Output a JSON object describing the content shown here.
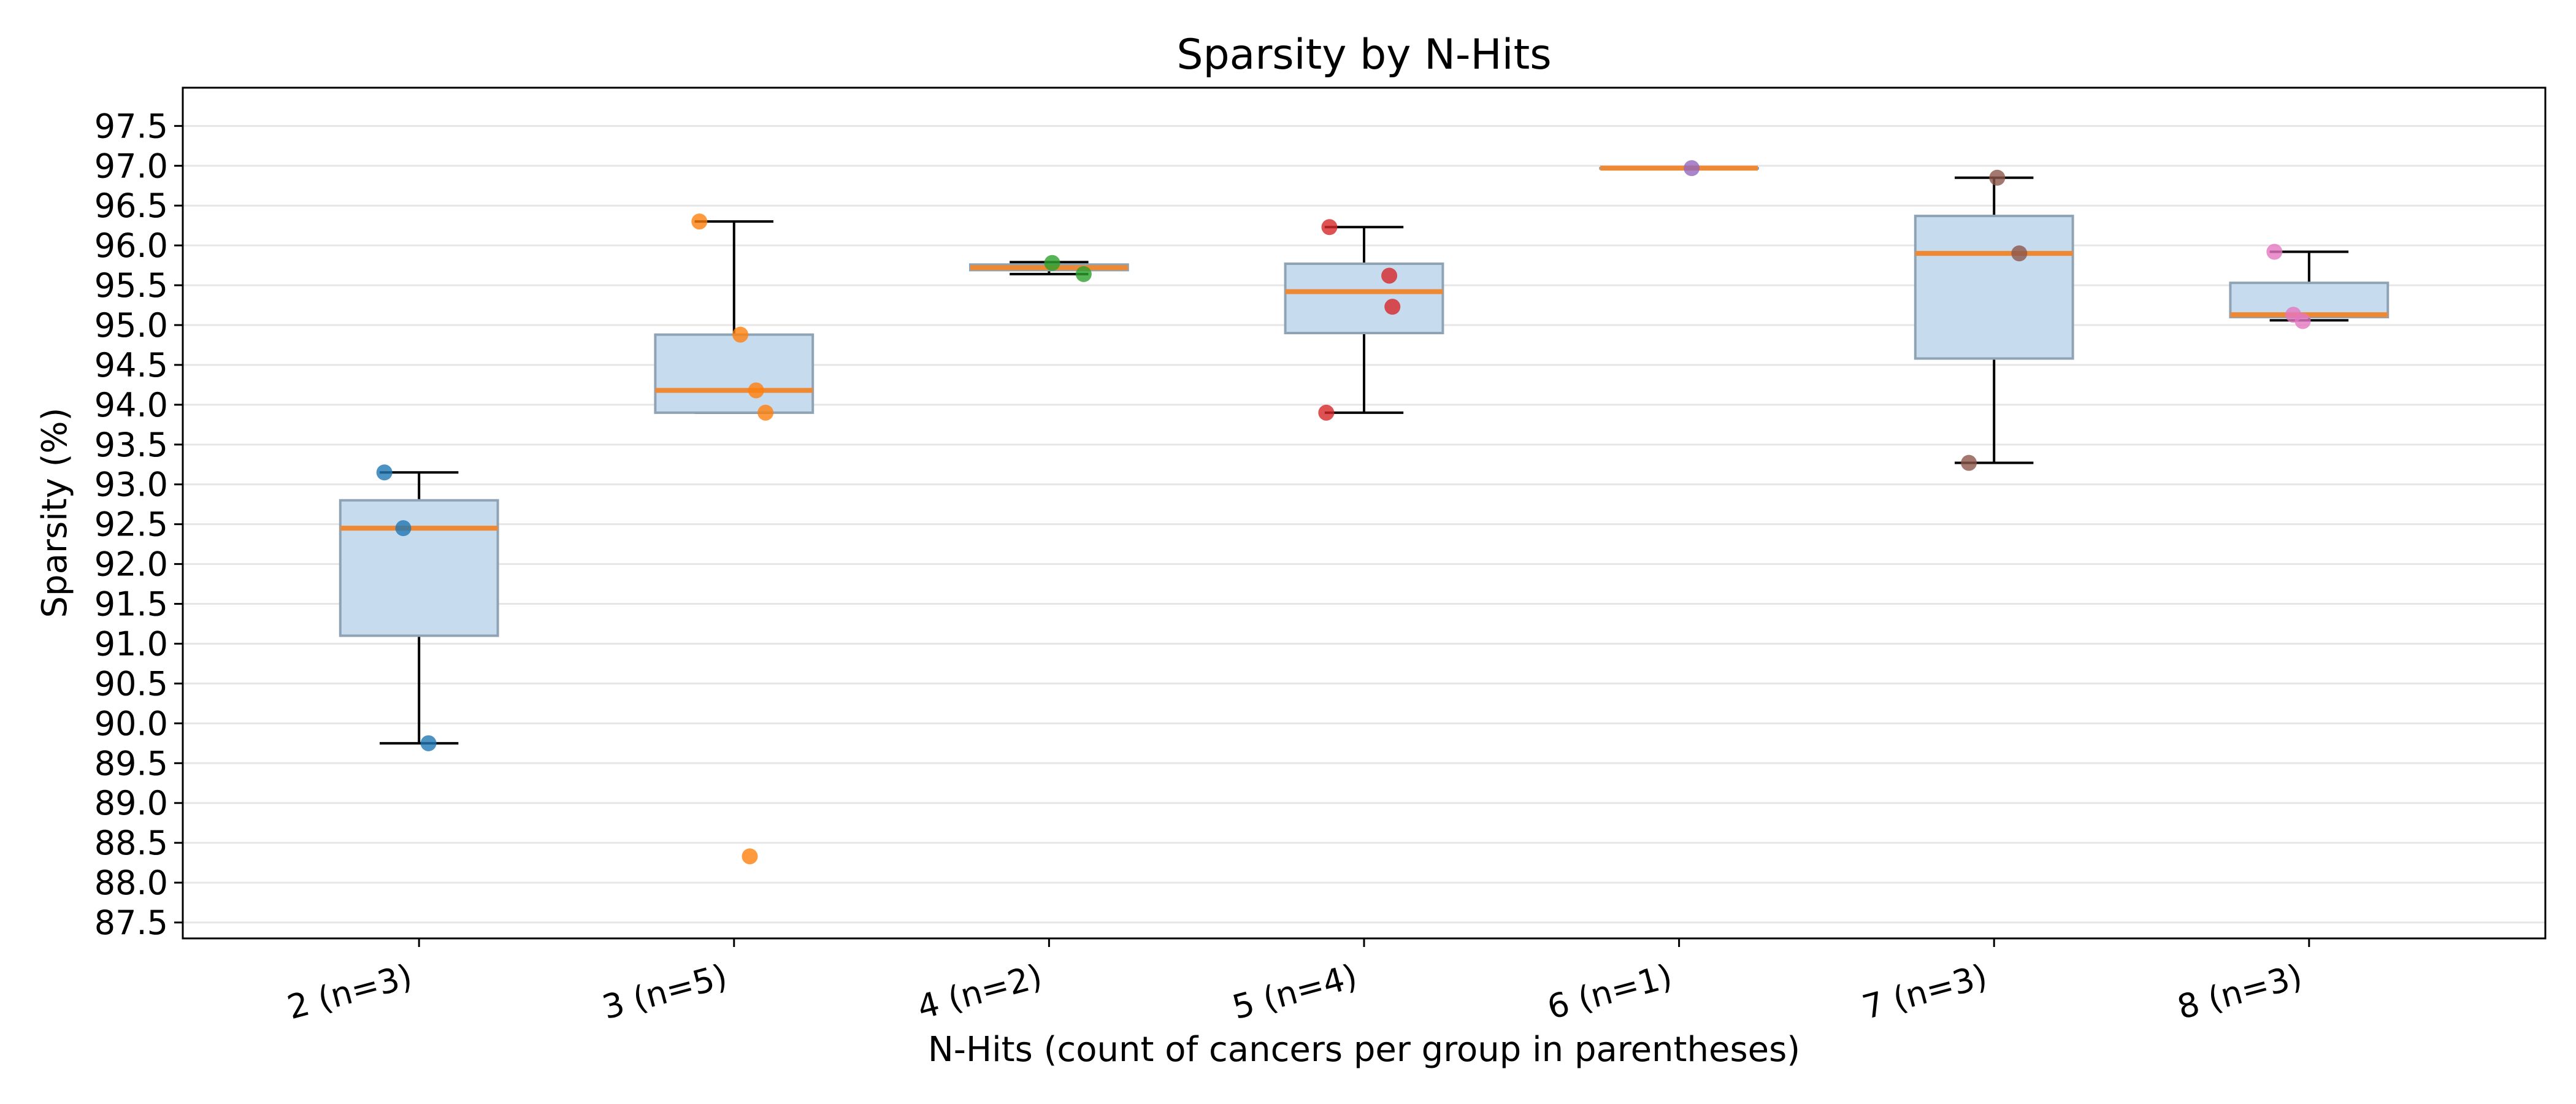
{
  "chart_data": {
    "type": "box",
    "title": "Sparsity by N-Hits",
    "xlabel": "N-Hits (count of cancers per group in parentheses)",
    "ylabel": "Sparsity (%)",
    "ylim": [
      87.3,
      97.98
    ],
    "yticks": [
      87.5,
      88.0,
      88.5,
      89.0,
      89.5,
      90.0,
      90.5,
      91.0,
      91.5,
      92.0,
      92.5,
      93.0,
      93.5,
      94.0,
      94.5,
      95.0,
      95.5,
      96.0,
      96.5,
      97.0,
      97.5
    ],
    "ytick_labels": [
      "87.5",
      "88.0",
      "88.5",
      "89.0",
      "89.5",
      "90.0",
      "90.5",
      "91.0",
      "91.5",
      "92.0",
      "92.5",
      "93.0",
      "93.5",
      "94.0",
      "94.5",
      "95.0",
      "95.5",
      "96.0",
      "96.5",
      "97.0",
      "97.5"
    ],
    "grid": "horizontal",
    "categories": [
      "2 (n=3)",
      "3 (n=5)",
      "4 (n=2)",
      "5 (n=4)",
      "6 (n=1)",
      "7 (n=3)",
      "8 (n=3)"
    ],
    "boxes": [
      {
        "q1": 91.1,
        "median": 92.45,
        "q3": 92.8,
        "whisker_low": 89.75,
        "whisker_high": 93.15,
        "outliers": []
      },
      {
        "q1": 93.9,
        "median": 94.18,
        "q3": 94.88,
        "whisker_low": 93.9,
        "whisker_high": 96.3,
        "outliers": [
          88.33
        ]
      },
      {
        "q1": 95.69,
        "median": 95.72,
        "q3": 95.76,
        "whisker_low": 95.64,
        "whisker_high": 95.79,
        "outliers": []
      },
      {
        "q1": 94.9,
        "median": 95.42,
        "q3": 95.77,
        "whisker_low": 93.9,
        "whisker_high": 96.23,
        "outliers": []
      },
      {
        "q1": 96.97,
        "median": 96.97,
        "q3": 96.97,
        "whisker_low": 96.97,
        "whisker_high": 96.97,
        "outliers": []
      },
      {
        "q1": 94.58,
        "median": 95.9,
        "q3": 96.37,
        "whisker_low": 93.27,
        "whisker_high": 96.85,
        "outliers": []
      },
      {
        "q1": 95.1,
        "median": 95.13,
        "q3": 95.53,
        "whisker_low": 95.06,
        "whisker_high": 95.92,
        "outliers": []
      }
    ],
    "points": [
      {
        "group": 0,
        "y": 93.15,
        "jitter": -0.11,
        "color": "#1f77b4"
      },
      {
        "group": 0,
        "y": 92.45,
        "jitter": -0.05,
        "color": "#1f77b4"
      },
      {
        "group": 0,
        "y": 89.75,
        "jitter": 0.03,
        "color": "#1f77b4"
      },
      {
        "group": 1,
        "y": 96.3,
        "jitter": -0.11,
        "color": "#ff7f0e"
      },
      {
        "group": 1,
        "y": 94.88,
        "jitter": 0.02,
        "color": "#ff7f0e"
      },
      {
        "group": 1,
        "y": 94.18,
        "jitter": 0.07,
        "color": "#ff7f0e"
      },
      {
        "group": 1,
        "y": 93.9,
        "jitter": 0.1,
        "color": "#ff7f0e"
      },
      {
        "group": 1,
        "y": 88.33,
        "jitter": 0.05,
        "color": "#ff7f0e"
      },
      {
        "group": 2,
        "y": 95.78,
        "jitter": 0.01,
        "color": "#2ca02c"
      },
      {
        "group": 2,
        "y": 95.64,
        "jitter": 0.11,
        "color": "#2ca02c"
      },
      {
        "group": 3,
        "y": 96.23,
        "jitter": -0.11,
        "color": "#d62728"
      },
      {
        "group": 3,
        "y": 95.62,
        "jitter": 0.08,
        "color": "#d62728"
      },
      {
        "group": 3,
        "y": 95.23,
        "jitter": 0.09,
        "color": "#d62728"
      },
      {
        "group": 3,
        "y": 93.9,
        "jitter": -0.12,
        "color": "#d62728"
      },
      {
        "group": 4,
        "y": 96.97,
        "jitter": 0.04,
        "color": "#9467bd"
      },
      {
        "group": 5,
        "y": 96.85,
        "jitter": 0.01,
        "color": "#8c564b"
      },
      {
        "group": 5,
        "y": 95.9,
        "jitter": 0.08,
        "color": "#8c564b"
      },
      {
        "group": 5,
        "y": 93.27,
        "jitter": -0.08,
        "color": "#8c564b"
      },
      {
        "group": 6,
        "y": 95.92,
        "jitter": -0.11,
        "color": "#e377c2"
      },
      {
        "group": 6,
        "y": 95.13,
        "jitter": -0.05,
        "color": "#e377c2"
      },
      {
        "group": 6,
        "y": 95.05,
        "jitter": -0.02,
        "color": "#e377c2"
      }
    ],
    "colors": {
      "box_fill": "#c6dbed",
      "box_edge": "#8fa3b5",
      "median": "#ee8833",
      "whisker": "#000000",
      "grid": "#e6e6e6"
    }
  }
}
